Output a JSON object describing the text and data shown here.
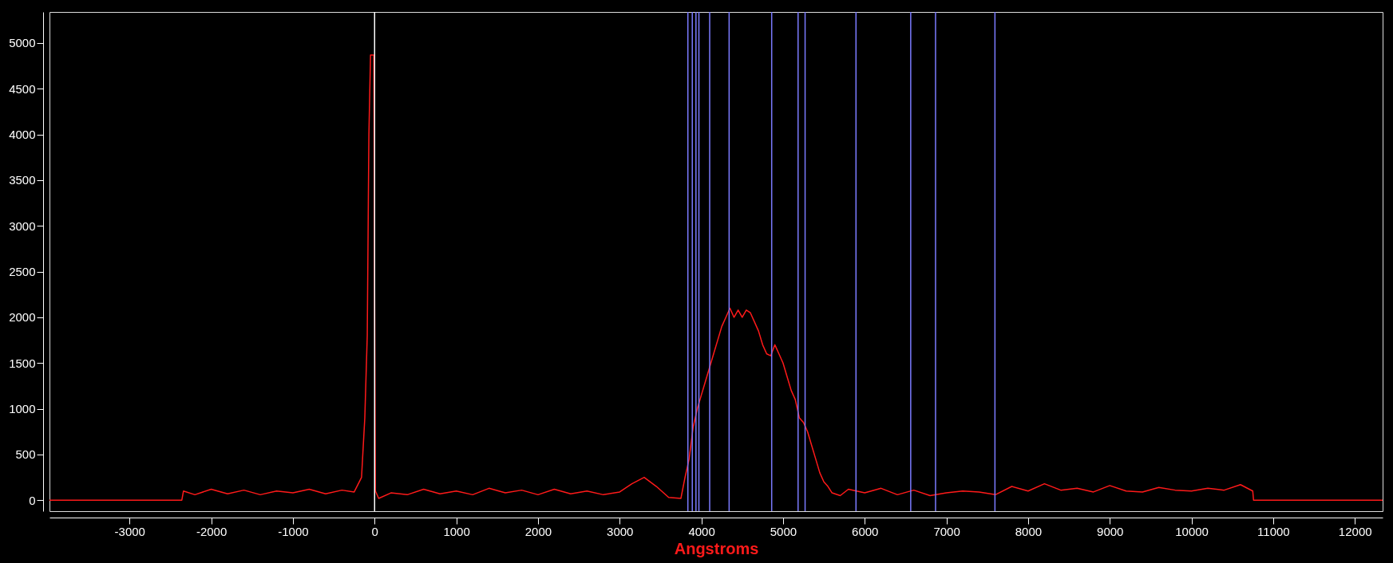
{
  "chart_data": {
    "type": "line",
    "xlabel": "Angstroms",
    "x": [
      -3980,
      -2360,
      -2340,
      -2200,
      -2000,
      -1800,
      -1600,
      -1400,
      -1200,
      -1000,
      -800,
      -600,
      -400,
      -250,
      -160,
      -120,
      -90,
      -70,
      -50,
      -30,
      -10,
      0,
      10,
      50,
      200,
      400,
      600,
      800,
      1000,
      1200,
      1400,
      1600,
      1800,
      2000,
      2200,
      2400,
      2600,
      2800,
      3000,
      3150,
      3300,
      3450,
      3600,
      3750,
      3800,
      3850,
      3900,
      3950,
      4000,
      4050,
      4100,
      4150,
      4200,
      4250,
      4300,
      4350,
      4400,
      4450,
      4500,
      4550,
      4600,
      4650,
      4700,
      4750,
      4800,
      4850,
      4900,
      4950,
      5000,
      5050,
      5100,
      5150,
      5200,
      5250,
      5300,
      5350,
      5400,
      5450,
      5500,
      5550,
      5600,
      5700,
      5800,
      6000,
      6200,
      6400,
      6600,
      6800,
      7000,
      7200,
      7400,
      7600,
      7800,
      8000,
      8200,
      8400,
      8600,
      8800,
      9000,
      9200,
      9400,
      9600,
      9800,
      10000,
      10200,
      10400,
      10600,
      10750,
      10760,
      12340
    ],
    "series": [
      {
        "color": "#ff1a1a",
        "values": [
          0,
          0,
          100,
          60,
          120,
          70,
          110,
          60,
          100,
          80,
          120,
          70,
          110,
          90,
          250,
          900,
          1800,
          4000,
          4870,
          4870,
          4870,
          2300,
          100,
          20,
          80,
          60,
          120,
          70,
          100,
          60,
          130,
          80,
          110,
          60,
          120,
          70,
          100,
          60,
          90,
          180,
          250,
          150,
          30,
          20,
          250,
          450,
          800,
          1000,
          1150,
          1300,
          1450,
          1600,
          1750,
          1900,
          2000,
          2100,
          2000,
          2080,
          2000,
          2080,
          2050,
          1950,
          1850,
          1700,
          1600,
          1580,
          1700,
          1600,
          1500,
          1350,
          1200,
          1100,
          900,
          850,
          750,
          600,
          450,
          300,
          200,
          150,
          80,
          50,
          120,
          80,
          130,
          60,
          110,
          50,
          80,
          100,
          90,
          60,
          150,
          100,
          180,
          110,
          130,
          90,
          160,
          100,
          90,
          140,
          110,
          100,
          130,
          110,
          170,
          100,
          0,
          0
        ]
      }
    ],
    "xlim": [
      -3980,
      12340
    ],
    "ylim": [
      -120,
      5340
    ],
    "xticks": [
      -3000,
      -2000,
      -1000,
      0,
      1000,
      2000,
      3000,
      4000,
      5000,
      6000,
      7000,
      8000,
      9000,
      10000,
      11000,
      12000
    ],
    "yticks": [
      0,
      500,
      1000,
      1500,
      2000,
      2500,
      3000,
      3500,
      4000,
      4500,
      5000
    ],
    "ref_lines": [
      {
        "axis": "x",
        "value": 0,
        "color": "#ffffff"
      },
      {
        "axis": "x",
        "value": 3835,
        "color": "#7b7bff"
      },
      {
        "axis": "x",
        "value": 3889,
        "color": "#7b7bff"
      },
      {
        "axis": "x",
        "value": 3934,
        "color": "#7b7bff"
      },
      {
        "axis": "x",
        "value": 3970,
        "color": "#7b7bff"
      },
      {
        "axis": "x",
        "value": 4102,
        "color": "#7b7bff"
      },
      {
        "axis": "x",
        "value": 4340,
        "color": "#7b7bff"
      },
      {
        "axis": "x",
        "value": 4861,
        "color": "#7b7bff"
      },
      {
        "axis": "x",
        "value": 5184,
        "color": "#7b7bff"
      },
      {
        "axis": "x",
        "value": 5270,
        "color": "#7b7bff"
      },
      {
        "axis": "x",
        "value": 5893,
        "color": "#7b7bff"
      },
      {
        "axis": "x",
        "value": 6563,
        "color": "#7b7bff"
      },
      {
        "axis": "x",
        "value": 6867,
        "color": "#7b7bff"
      },
      {
        "axis": "x",
        "value": 7594,
        "color": "#7b7bff"
      }
    ]
  }
}
